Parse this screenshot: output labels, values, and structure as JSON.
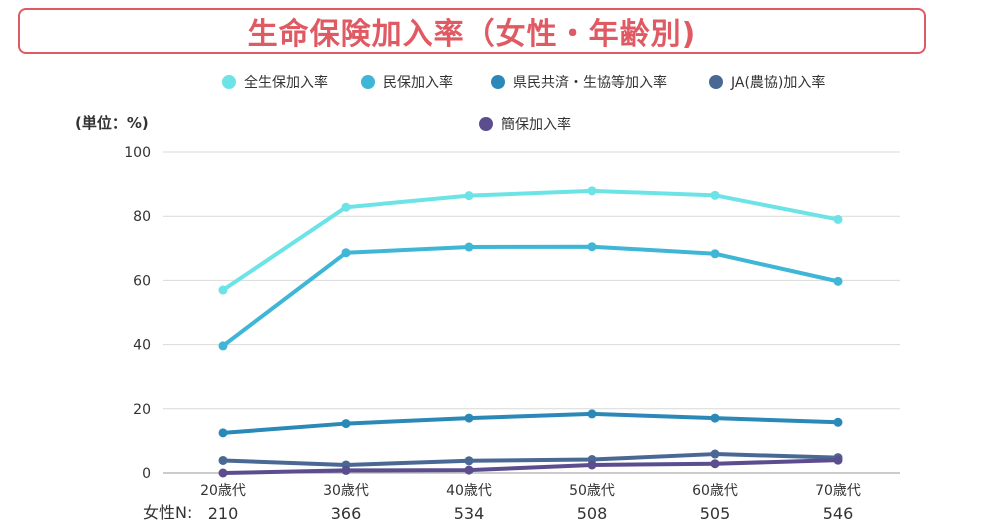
{
  "title": "生命保険加入率（女性・年齢別)",
  "unit_label": "(単位：%)",
  "n_label": "女性N:",
  "colors": {
    "title": "#e05a63",
    "series": [
      "#6ce3e6",
      "#3fb6d6",
      "#2a89b7",
      "#4a6894",
      "#5b4d8e"
    ]
  },
  "chart_data": {
    "type": "line",
    "categories": [
      "20歳代",
      "30歳代",
      "40歳代",
      "50歳代",
      "60歳代",
      "70歳代"
    ],
    "sample_sizes": [
      "210",
      "366",
      "534",
      "508",
      "505",
      "546"
    ],
    "ylim": [
      0,
      100
    ],
    "yticks": [
      0,
      20,
      40,
      60,
      80,
      100
    ],
    "grid": true,
    "legend_position": "top",
    "series": [
      {
        "name": "全生保加入率",
        "values": [
          57.0,
          82.8,
          86.4,
          87.9,
          86.5,
          79.0
        ]
      },
      {
        "name": "民保加入率",
        "values": [
          39.6,
          68.6,
          70.4,
          70.5,
          68.3,
          59.7
        ]
      },
      {
        "name": "県民共済・生協等加入率",
        "values": [
          12.5,
          15.4,
          17.1,
          18.4,
          17.1,
          15.8
        ]
      },
      {
        "name": "JA(農協)加入率",
        "values": [
          3.9,
          2.5,
          3.8,
          4.2,
          5.9,
          4.8
        ]
      },
      {
        "name": "簡保加入率",
        "values": [
          0.0,
          0.8,
          0.9,
          2.5,
          2.9,
          4.0
        ]
      }
    ]
  }
}
